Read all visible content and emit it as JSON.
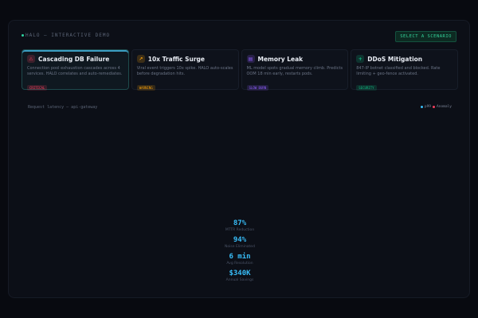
{
  "header": {
    "title": "HALO — INTERACTIVE DEMO",
    "select_label": "SELECT A SCENARIO"
  },
  "scenarios": [
    {
      "title": "Cascading DB Failure",
      "icon": "warning-icon",
      "desc": "Connection pool exhaustion cascades across 4 services. HALO correlates and auto-remediates.",
      "tag": "CRITICAL",
      "color": "#f43f5e"
    },
    {
      "title": "10x Traffic Surge",
      "icon": "chart-icon",
      "desc": "Viral event triggers 10x spike. HALO auto-scales before degradation hits.",
      "tag": "WARNING",
      "color": "#f59e0b"
    },
    {
      "title": "Memory Leak",
      "icon": "memory-icon",
      "desc": "ML model spots gradual memory climb. Predicts OOM 18 min early, restarts pods.",
      "tag": "SLOW BURN",
      "color": "#8b5cf6"
    },
    {
      "title": "DDoS Mitigation",
      "icon": "shield-icon",
      "desc": "847-IP botnet classified and blocked. Rate limiting + geo-fence activated.",
      "tag": "SECURITY",
      "color": "#10b981"
    }
  ],
  "chart": {
    "title": "Request latency — api-gateway",
    "legend": [
      {
        "label": "p99",
        "color": "#38bdf8"
      },
      {
        "label": "Anomaly",
        "color": "#f43f5e"
      }
    ]
  },
  "stats": [
    {
      "value": "87%",
      "label": "MTTR Reduction"
    },
    {
      "value": "94%",
      "label": "Noise Eliminated"
    },
    {
      "value": "6 min",
      "label": "Avg Resolution"
    },
    {
      "value": "$340K",
      "label": "Annual Savings"
    }
  ]
}
